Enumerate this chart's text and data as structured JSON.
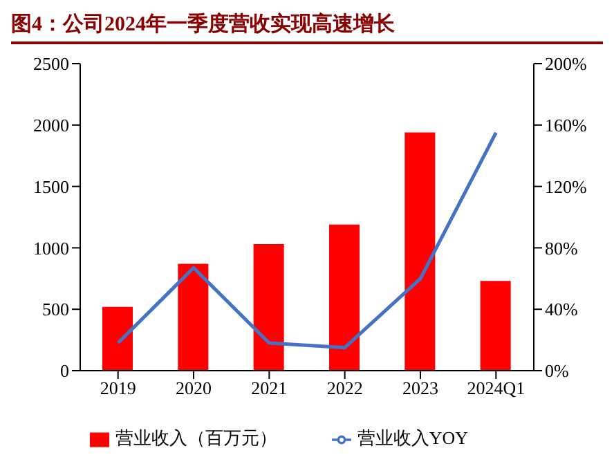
{
  "chart_data": {
    "type": "bar",
    "title": "图4：公司2024年一季度营收实现高速增长",
    "categories": [
      "2019",
      "2020",
      "2021",
      "2022",
      "2023",
      "2024Q1"
    ],
    "series": [
      {
        "name": "营业收入（百万元）",
        "color": "#ff0000",
        "values": [
          520,
          870,
          1030,
          1190,
          1940,
          730
        ]
      },
      {
        "name": "营业收入YOY",
        "type": "line",
        "axis": "y2",
        "color": "#4472c4",
        "values": [
          18,
          67,
          18,
          15,
          60,
          155
        ]
      }
    ],
    "ylim": [
      0,
      2500
    ],
    "yticks": [
      0,
      500,
      1000,
      1500,
      2000,
      2500
    ],
    "y2lim": [
      0,
      200
    ],
    "y2ticks": [
      {
        "value": 0,
        "label": "0%"
      },
      {
        "value": 40,
        "label": "40%"
      },
      {
        "value": 80,
        "label": "80%"
      },
      {
        "value": 120,
        "label": "120%"
      },
      {
        "value": 160,
        "label": "160%"
      },
      {
        "value": 200,
        "label": "200%"
      }
    ],
    "legend": "bottom",
    "marker": "none",
    "line_style": "solid"
  }
}
